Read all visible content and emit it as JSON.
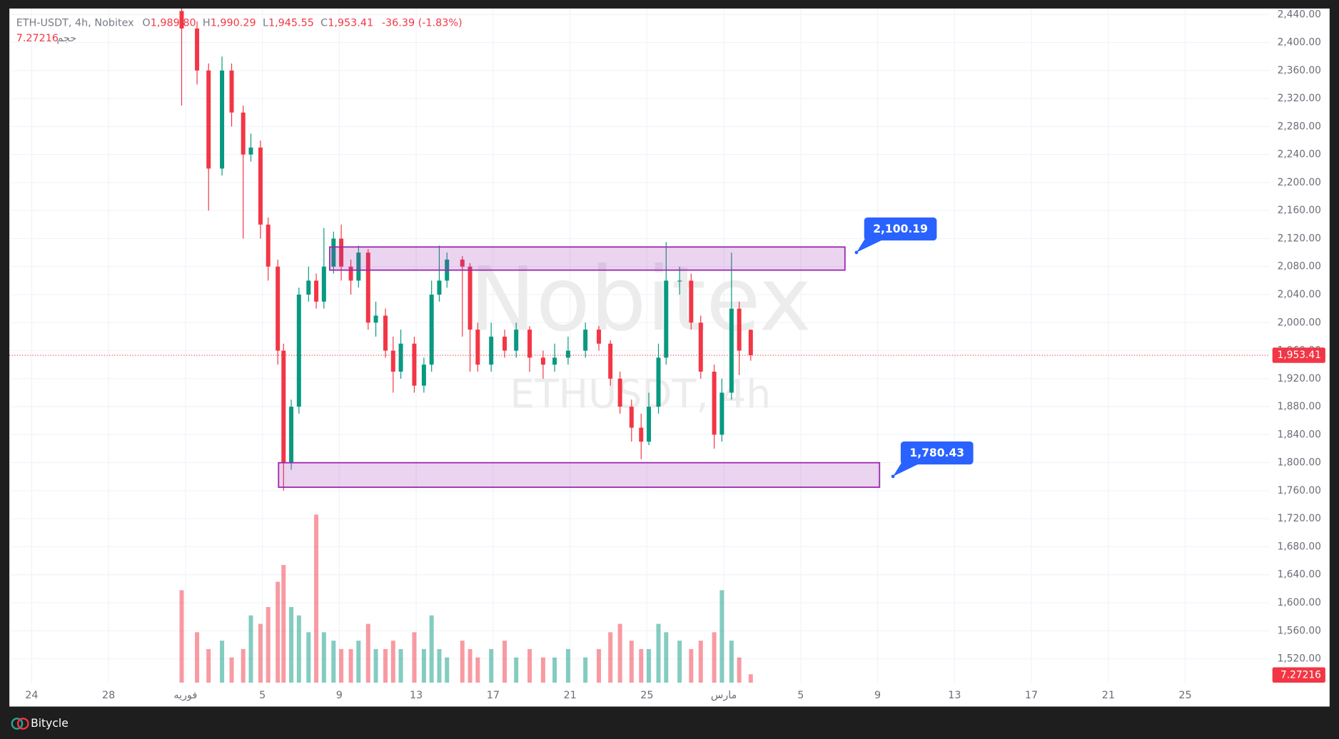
{
  "header": {
    "symbol": "ETH-USDT, 4h, Nobitex",
    "o_label": "O",
    "o": "1,989.80",
    "h_label": "H",
    "h": "1,990.29",
    "l_label": "L",
    "l": "1,945.55",
    "c_label": "C",
    "c": "1,953.41",
    "change": "-36.39 (-1.83%)",
    "volume_label": "حجم",
    "volume_value": "7.27216"
  },
  "watermark": {
    "title": "Nobitex",
    "subtitle": "ETHUSDT, 4h"
  },
  "footer": {
    "brand": "Bitycle"
  },
  "chart_data": {
    "type": "candlestick",
    "up_color": "#089981",
    "down_color": "#f23645",
    "zone_color": "#9c27b0",
    "annotation_color": "#2962ff",
    "grid": true,
    "xlim": [
      -1.16,
      64.4
    ],
    "ylim": [
      1485.9,
      2448.5
    ],
    "volume_lim": [
      0,
      100
    ],
    "xticks": [
      {
        "value": 0,
        "label": "24"
      },
      {
        "value": 4,
        "label": "28"
      },
      {
        "value": 8,
        "label": "فوریه"
      },
      {
        "value": 12,
        "label": "5"
      },
      {
        "value": 16,
        "label": "9"
      },
      {
        "value": 20,
        "label": "13"
      },
      {
        "value": 24,
        "label": "17"
      },
      {
        "value": 28,
        "label": "21"
      },
      {
        "value": 32,
        "label": "25"
      },
      {
        "value": 36,
        "label": "مارس"
      },
      {
        "value": 40,
        "label": "5"
      },
      {
        "value": 44,
        "label": "9"
      },
      {
        "value": 48,
        "label": "13"
      },
      {
        "value": 52,
        "label": "17"
      },
      {
        "value": 56,
        "label": "21"
      },
      {
        "value": 60,
        "label": "25"
      }
    ],
    "yticks": [
      {
        "value": 1520,
        "label": "1,520.00"
      },
      {
        "value": 1560,
        "label": "1,560.00"
      },
      {
        "value": 1600,
        "label": "1,600.00"
      },
      {
        "value": 1640,
        "label": "1,640.00"
      },
      {
        "value": 1680,
        "label": "1,680.00"
      },
      {
        "value": 1720,
        "label": "1,720.00"
      },
      {
        "value": 1760,
        "label": "1,760.00"
      },
      {
        "value": 1800,
        "label": "1,800.00"
      },
      {
        "value": 1840,
        "label": "1,840.00"
      },
      {
        "value": 1880,
        "label": "1,880.00"
      },
      {
        "value": 1920,
        "label": "1,920.00"
      },
      {
        "value": 1960,
        "label": "1,960.00"
      },
      {
        "value": 2000,
        "label": "2,000.00"
      },
      {
        "value": 2040,
        "label": "2,040.00"
      },
      {
        "value": 2080,
        "label": "2,080.00"
      },
      {
        "value": 2120,
        "label": "2,120.00"
      },
      {
        "value": 2160,
        "label": "2,160.00"
      },
      {
        "value": 2200,
        "label": "2,200.00"
      },
      {
        "value": 2240,
        "label": "2,240.00"
      },
      {
        "value": 2280,
        "label": "2,280.00"
      },
      {
        "value": 2320,
        "label": "2,320.00"
      },
      {
        "value": 2360,
        "label": "2,360.00"
      },
      {
        "value": 2400,
        "label": "2,400.00"
      },
      {
        "value": 2440,
        "label": "2,440.00"
      }
    ],
    "x": [
      7.8,
      8.6,
      9.2,
      9.9,
      10.4,
      11,
      11.4,
      11.9,
      12.3,
      12.8,
      13.1,
      13.5,
      13.9,
      14.4,
      14.8,
      15.2,
      15.7,
      16.1,
      16.6,
      17,
      17.5,
      17.9,
      18.4,
      18.8,
      19.2,
      19.9,
      20.4,
      20.8,
      21.2,
      21.6,
      22.4,
      22.8,
      23.2,
      23.9,
      24.6,
      25.2,
      25.9,
      26.6,
      27.2,
      27.9,
      28.8,
      29.5,
      30.1,
      30.6,
      31.2,
      31.7,
      32.1,
      32.6,
      33,
      33.7,
      34.3,
      34.8,
      35.5,
      35.9,
      36.4,
      36.8,
      37.4
    ],
    "open": [
      2445,
      2420,
      2360,
      2220,
      2360,
      2300,
      2240,
      2250,
      2140,
      2080,
      1960,
      1800,
      1880,
      2040,
      2060,
      2030,
      2080,
      2120,
      2080,
      2060,
      2100,
      2000,
      2010,
      1960,
      1930,
      1970,
      1910,
      1940,
      2040,
      2060,
      2090,
      2080,
      1990,
      1940,
      1980,
      1960,
      1990,
      1950,
      1940,
      1950,
      1960,
      1990,
      1970,
      1920,
      1880,
      1850,
      1830,
      1880,
      1950,
      2060,
      2060,
      2000,
      1930,
      1840,
      1900,
      2020,
      1989.8
    ],
    "high": [
      2455,
      2430,
      2370,
      2380,
      2370,
      2310,
      2270,
      2260,
      2150,
      2090,
      1970,
      1890,
      2050,
      2080,
      2070,
      2135,
      2130,
      2140,
      2090,
      2110,
      2105,
      2030,
      2020,
      1980,
      1990,
      1980,
      1950,
      2060,
      2110,
      2100,
      2095,
      2085,
      2000,
      2000,
      1990,
      2000,
      1995,
      1960,
      1970,
      1980,
      2000,
      1995,
      1975,
      1930,
      1890,
      1870,
      1900,
      1970,
      2115,
      2080,
      2070,
      2010,
      1940,
      1920,
      2100,
      2030,
      1990.29
    ],
    "low": [
      2310,
      2340,
      2160,
      2210,
      2280,
      2120,
      2230,
      2120,
      2060,
      1940,
      1760,
      1790,
      1870,
      2030,
      2020,
      2020,
      2070,
      2060,
      2040,
      2050,
      1990,
      1980,
      1950,
      1900,
      1920,
      1900,
      1900,
      1930,
      2030,
      2050,
      1980,
      1930,
      1930,
      1930,
      1950,
      1950,
      1930,
      1920,
      1930,
      1940,
      1950,
      1960,
      1910,
      1870,
      1830,
      1805,
      1825,
      1870,
      1940,
      2040,
      1990,
      1920,
      1820,
      1830,
      1890,
      1925,
      1945.55
    ],
    "close": [
      2420,
      2360,
      2220,
      2360,
      2300,
      2240,
      2250,
      2140,
      2080,
      1960,
      1800,
      1880,
      2040,
      2060,
      2030,
      2080,
      2120,
      2080,
      2060,
      2100,
      2000,
      2010,
      1960,
      1930,
      1970,
      1910,
      1940,
      2040,
      2060,
      2090,
      2080,
      1990,
      1940,
      1980,
      1960,
      1990,
      1950,
      1940,
      1950,
      1960,
      1990,
      1970,
      1920,
      1880,
      1850,
      1830,
      1880,
      1950,
      2060,
      2060,
      2000,
      1930,
      1840,
      1900,
      2020,
      1960,
      1953.41
    ],
    "volume": [
      55,
      30,
      20,
      25,
      15,
      20,
      40,
      35,
      45,
      60,
      70,
      45,
      40,
      30,
      100,
      30,
      25,
      20,
      20,
      25,
      35,
      20,
      20,
      25,
      20,
      30,
      20,
      40,
      20,
      15,
      25,
      20,
      15,
      20,
      25,
      15,
      20,
      15,
      15,
      20,
      15,
      20,
      30,
      35,
      25,
      20,
      20,
      35,
      30,
      25,
      20,
      25,
      30,
      55,
      25,
      15,
      5
    ],
    "zones": [
      {
        "x": [
          15.5,
          42.3
        ],
        "y": [
          2075,
          2108
        ]
      },
      {
        "x": [
          12.84,
          44.1
        ],
        "y": [
          1765,
          1800
        ]
      }
    ],
    "annotations": [
      {
        "x": 42.9,
        "value": 2100.19,
        "label": "2,100.19"
      },
      {
        "x": 44.8,
        "value": 1780.43,
        "label": "1,780.43"
      }
    ],
    "last_price": {
      "value": 1953.41,
      "label": "1,953.41"
    }
  }
}
